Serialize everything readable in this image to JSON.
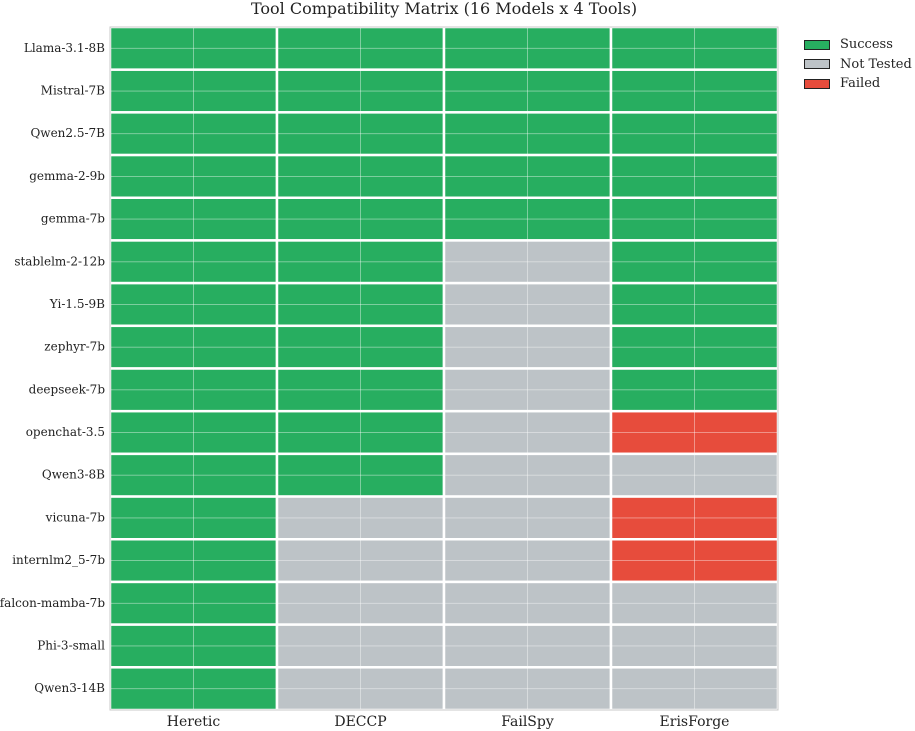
{
  "chart_data": {
    "type": "heatmap",
    "title": "Tool Compatibility Matrix (16 Models x 4 Tools)",
    "columns": [
      "Heretic",
      "DECCP",
      "FailSpy",
      "ErisForge"
    ],
    "rows": [
      "Llama-3.1-8B",
      "Mistral-7B",
      "Qwen2.5-7B",
      "gemma-2-9b",
      "gemma-7b",
      "stablelm-2-12b",
      "Yi-1.5-9B",
      "zephyr-7b",
      "deepseek-7b",
      "openchat-3.5",
      "Qwen3-8B",
      "vicuna-7b",
      "internlm2_5-7b",
      "falcon-mamba-7b",
      "Phi-3-small",
      "Qwen3-14B"
    ],
    "values": [
      [
        "Success",
        "Success",
        "Success",
        "Success"
      ],
      [
        "Success",
        "Success",
        "Success",
        "Success"
      ],
      [
        "Success",
        "Success",
        "Success",
        "Success"
      ],
      [
        "Success",
        "Success",
        "Success",
        "Success"
      ],
      [
        "Success",
        "Success",
        "Success",
        "Success"
      ],
      [
        "Success",
        "Success",
        "Not Tested",
        "Success"
      ],
      [
        "Success",
        "Success",
        "Not Tested",
        "Success"
      ],
      [
        "Success",
        "Success",
        "Not Tested",
        "Success"
      ],
      [
        "Success",
        "Success",
        "Not Tested",
        "Success"
      ],
      [
        "Success",
        "Success",
        "Not Tested",
        "Failed"
      ],
      [
        "Success",
        "Success",
        "Not Tested",
        "Not Tested"
      ],
      [
        "Success",
        "Not Tested",
        "Not Tested",
        "Failed"
      ],
      [
        "Success",
        "Not Tested",
        "Not Tested",
        "Failed"
      ],
      [
        "Success",
        "Not Tested",
        "Not Tested",
        "Not Tested"
      ],
      [
        "Success",
        "Not Tested",
        "Not Tested",
        "Not Tested"
      ],
      [
        "Success",
        "Not Tested",
        "Not Tested",
        "Not Tested"
      ]
    ],
    "legend": [
      {
        "label": "Success",
        "color": "#27ae60"
      },
      {
        "label": "Not Tested",
        "color": "#bdc3c7"
      },
      {
        "label": "Failed",
        "color": "#e74c3c"
      }
    ],
    "legend_position": "outside top-right",
    "grid": true
  }
}
